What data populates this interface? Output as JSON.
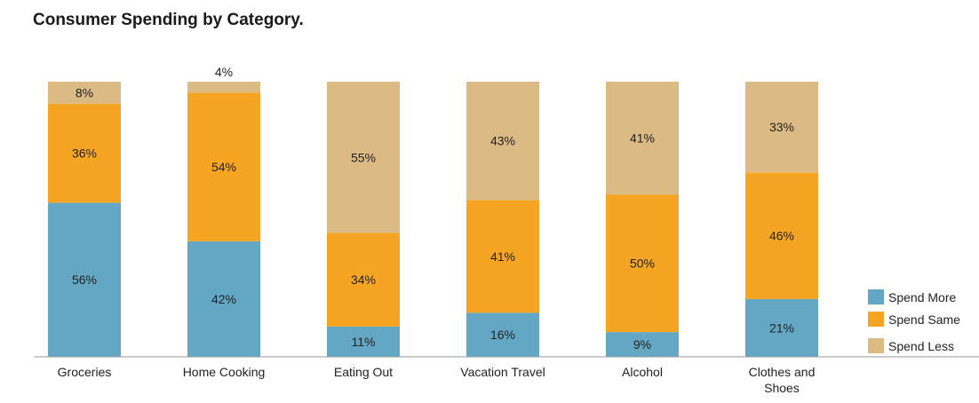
{
  "chart_data": {
    "type": "bar",
    "stacked": true,
    "percent_stacked": true,
    "title": "Consumer Spending by Category.",
    "xlabel": "",
    "ylabel": "",
    "ylim": [
      0,
      100
    ],
    "grid": false,
    "legend_position": "bottom-right",
    "categories": [
      "Groceries",
      "Home Cooking",
      "Eating Out",
      "Vacation Travel",
      "Alcohol",
      "Clothes and Shoes"
    ],
    "series": [
      {
        "name": "Spend More",
        "color": "#63a7c4",
        "values": [
          56,
          42,
          11,
          16,
          9,
          21
        ]
      },
      {
        "name": "Spend Same",
        "color": "#f6a522",
        "values": [
          36,
          54,
          34,
          41,
          50,
          46
        ]
      },
      {
        "name": "Spend Less",
        "color": "#dbba84",
        "values": [
          8,
          4,
          55,
          43,
          41,
          33
        ]
      }
    ],
    "data_labels": [
      [
        "56%",
        "42%",
        "11%",
        "16%",
        "9%",
        "21%"
      ],
      [
        "36%",
        "54%",
        "34%",
        "41%",
        "50%",
        "46%"
      ],
      [
        "8%",
        "4%",
        "55%",
        "43%",
        "41%",
        "33%"
      ]
    ]
  }
}
